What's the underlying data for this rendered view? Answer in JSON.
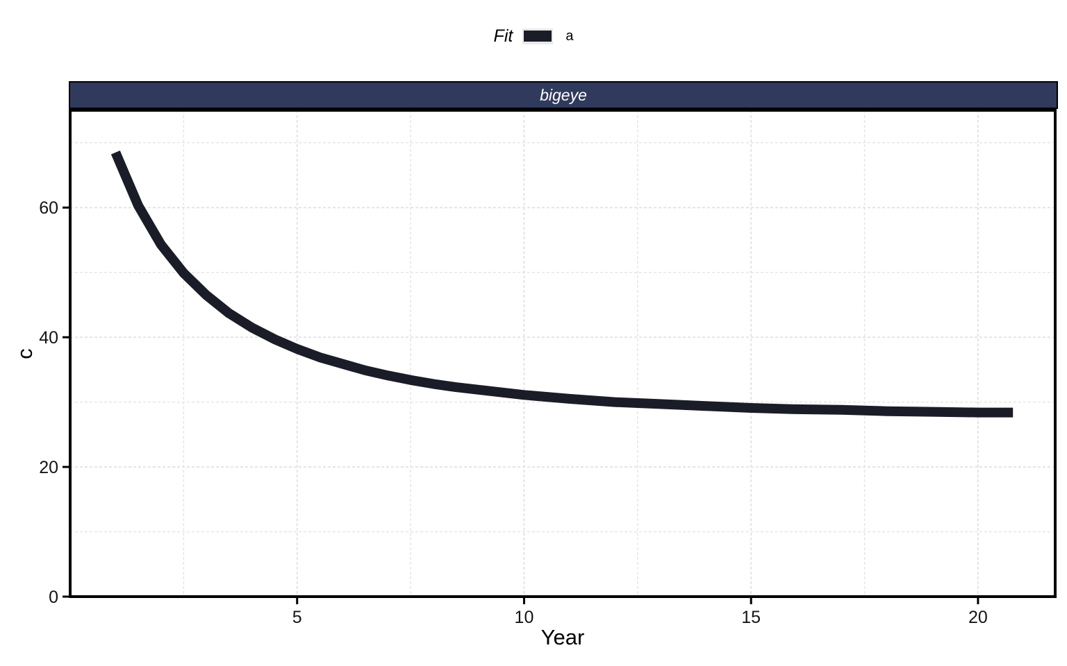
{
  "legend": {
    "title": "Fit",
    "items": [
      {
        "label": "a",
        "color": "#1a1d27"
      }
    ]
  },
  "facet": {
    "label": "bigeye",
    "bg_color": "#303a5c",
    "text_color": "#ffffff"
  },
  "chart_data": {
    "type": "line",
    "facet_label": "bigeye",
    "xlabel": "Year",
    "ylabel": "c",
    "legend_title": "Fit",
    "legend_position": "top",
    "grid": "dashed",
    "xlim": [
      0,
      21.7
    ],
    "ylim": [
      0,
      75
    ],
    "x_ticks": [
      5,
      10,
      15,
      20
    ],
    "y_ticks": [
      0,
      20,
      40,
      60
    ],
    "x_minor": [
      2.5,
      7.5,
      12.5,
      17.5
    ],
    "y_minor": [
      10,
      30,
      50,
      70
    ],
    "series": [
      {
        "name": "a",
        "color": "#1a1d27",
        "stroke_width": 14,
        "x": [
          1,
          1.5,
          2,
          2.5,
          3,
          3.5,
          4,
          4.5,
          5,
          5.5,
          6,
          6.5,
          7,
          7.5,
          8,
          8.5,
          9,
          9.5,
          10,
          11,
          12,
          13,
          14,
          15,
          16,
          17,
          18,
          19,
          20,
          20.77
        ],
        "y": [
          68.5,
          60.3,
          54.3,
          49.9,
          46.5,
          43.7,
          41.5,
          39.7,
          38.2,
          36.9,
          35.9,
          34.9,
          34.1,
          33.4,
          32.8,
          32.3,
          31.9,
          31.5,
          31.1,
          30.5,
          30.0,
          29.7,
          29.4,
          29.1,
          28.9,
          28.8,
          28.6,
          28.5,
          28.4,
          28.4
        ]
      }
    ],
    "colors": {
      "grid": "#e4e4e4",
      "axis": "#000000",
      "panel_bg": "#ffffff",
      "tick_label": "#141414"
    }
  }
}
